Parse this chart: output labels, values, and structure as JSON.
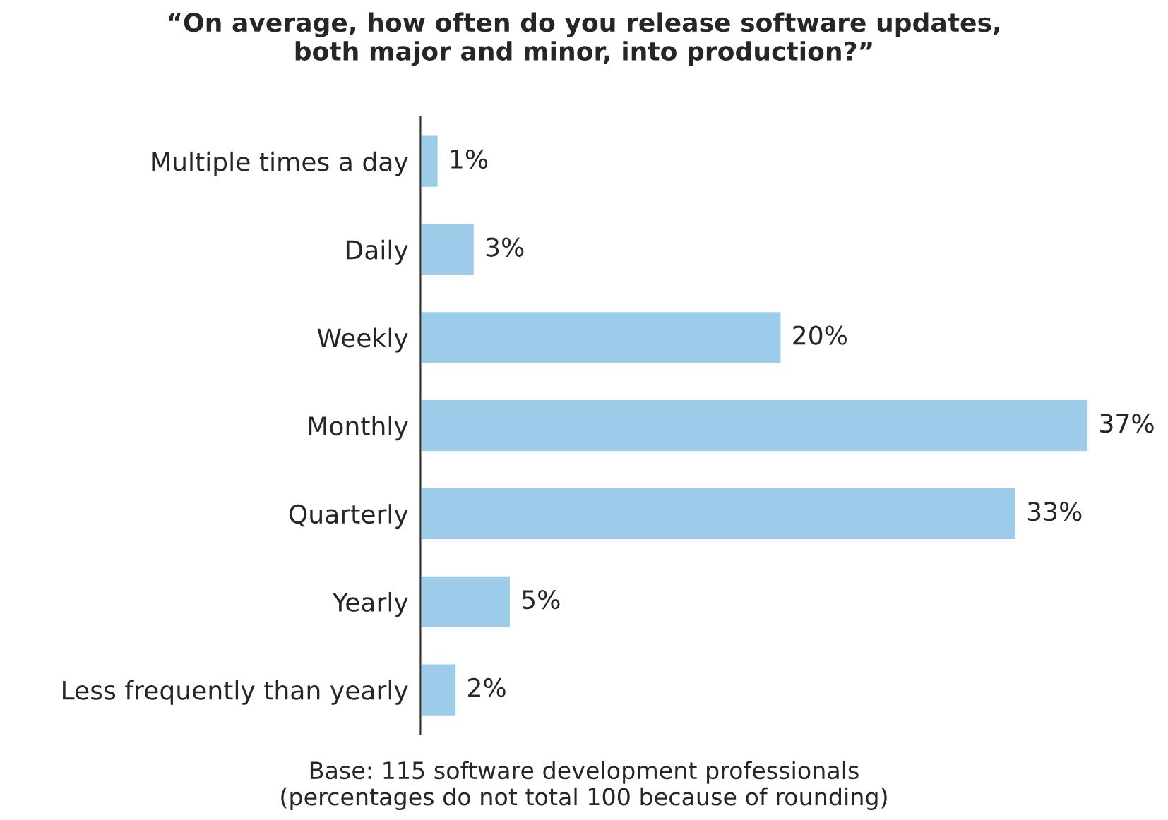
{
  "chart_data": {
    "type": "bar",
    "orientation": "horizontal",
    "title": "“On average, how often do you release software updates,\nboth major and minor, into production?”",
    "categories": [
      "Multiple times a day",
      "Daily",
      "Weekly",
      "Monthly",
      "Quarterly",
      "Yearly",
      "Less frequently than yearly"
    ],
    "values": [
      1,
      3,
      20,
      37,
      33,
      5,
      2
    ],
    "value_labels": [
      "1%",
      "3%",
      "20%",
      "37%",
      "33%",
      "5%",
      "2%"
    ],
    "color": "#9dcbea",
    "annotations": [
      "Base: 115 software development professionals\n(percentages do not total 100 because of rounding)"
    ]
  }
}
